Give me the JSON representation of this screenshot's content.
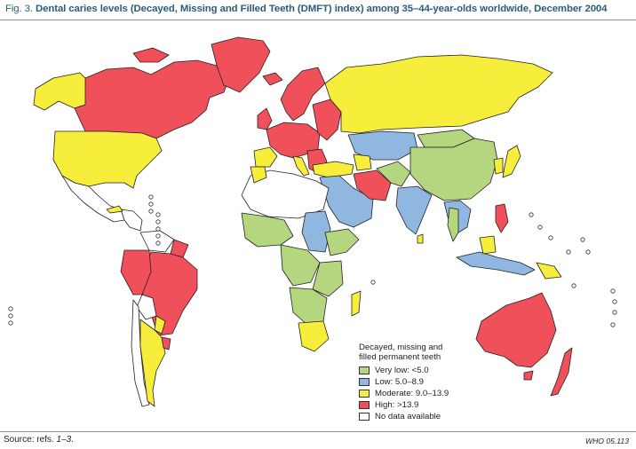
{
  "title": {
    "fig": "Fig. 3.",
    "text": "Dental caries levels (Decayed, Missing and Filled Teeth (DMFT) index) among 35–44-year-olds worldwide, December 2004"
  },
  "legend": {
    "title_line1": "Decayed, missing and",
    "title_line2": "filled permanent teeth",
    "items": [
      {
        "label": "Very low: <5.0",
        "color": "#b3d67f"
      },
      {
        "label": "Low: 5.0–8.9",
        "color": "#8fb7e0"
      },
      {
        "label": "Moderate: 9.0–13.9",
        "color": "#f7ee3c"
      },
      {
        "label": "High: >13.9",
        "color": "#f0505a"
      },
      {
        "label": "No data available",
        "color": "#ffffff"
      }
    ]
  },
  "footer": {
    "source_prefix": "Source: refs. ",
    "source_refs": "1–3",
    "source_suffix": ".",
    "code": "WHO 05.113"
  },
  "colors": {
    "very_low": "#b3d67f",
    "low": "#8fb7e0",
    "moderate": "#f7ee3c",
    "high": "#f0505a",
    "no_data": "#ffffff",
    "border": "#222222"
  }
}
